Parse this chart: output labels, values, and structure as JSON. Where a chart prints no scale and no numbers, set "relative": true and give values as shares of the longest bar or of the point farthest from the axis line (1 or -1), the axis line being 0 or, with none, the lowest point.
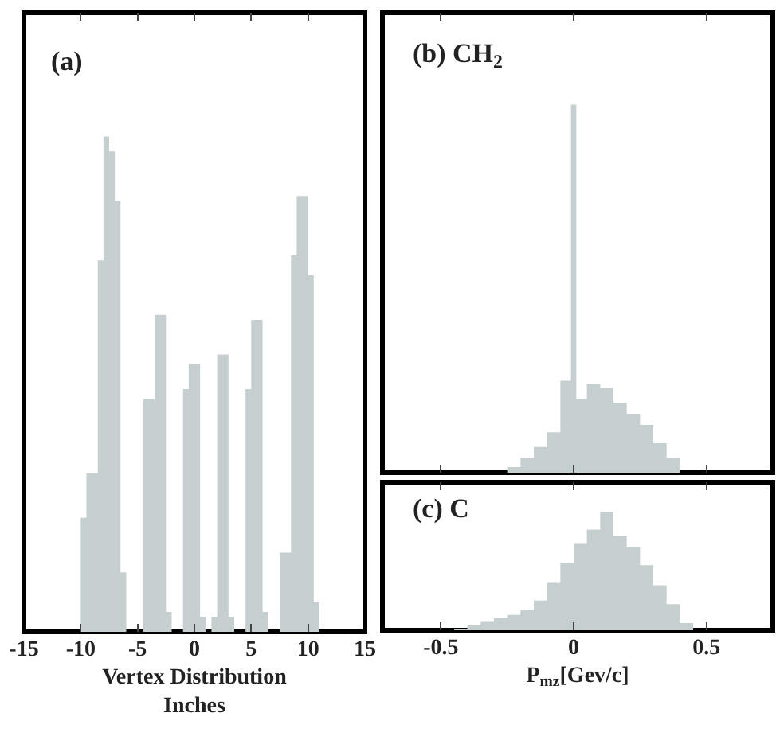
{
  "chart_data": [
    {
      "type": "area",
      "title": "(a)",
      "xlabel": "Vertex Distribution\nInches",
      "relative": true,
      "xlim": [
        -15,
        15
      ],
      "xticks": [
        -15,
        -10,
        -5,
        0,
        5,
        10,
        15
      ],
      "tick_labels": "x",
      "x": [
        -10.5,
        -10,
        -9.5,
        -9,
        -8.5,
        -8,
        -7.5,
        -7,
        -6.5,
        -6,
        -5.5,
        -5,
        -4.5,
        -4,
        -3.5,
        -3,
        -2.5,
        -2,
        -1.5,
        -1,
        -0.5,
        0,
        0.5,
        1,
        1.5,
        2,
        2.5,
        3,
        3.5,
        4,
        4.5,
        5,
        5.5,
        6,
        6.5,
        7,
        7.5,
        8,
        8.5,
        9,
        9.5,
        10,
        10.5,
        11,
        11.5
      ],
      "series": [
        {
          "type": "area",
          "color": "#c5cfd0",
          "values": [
            0,
            0.23,
            0.32,
            0.32,
            0.75,
            1,
            0.97,
            0.87,
            0.12,
            0,
            0,
            0,
            0.47,
            0.47,
            0.64,
            0.64,
            0.04,
            0,
            0,
            0.49,
            0.54,
            0.54,
            0.03,
            0,
            0.03,
            0.56,
            0.56,
            0.03,
            0,
            0,
            0.49,
            0.63,
            0.63,
            0.04,
            0,
            0,
            0.16,
            0.16,
            0.76,
            0.88,
            0.88,
            0.72,
            0.06,
            0,
            0
          ]
        }
      ]
    },
    {
      "type": "area",
      "title": "(b) CH$_{2}$",
      "relative": true,
      "xlim": [
        -0.72,
        0.75
      ],
      "xticks": [
        -0.5,
        0,
        0.5
      ],
      "tick_labels": false,
      "x": [
        -0.3,
        -0.25,
        -0.2,
        -0.15,
        -0.1,
        -0.05,
        -0.01,
        0.01,
        0.05,
        0.1,
        0.15,
        0.2,
        0.25,
        0.3,
        0.35,
        0.4,
        0.45
      ],
      "series": [
        {
          "type": "area",
          "color": "#c5cfd0",
          "values": [
            0,
            0.015,
            0.04,
            0.07,
            0.11,
            0.25,
            1,
            0.2,
            0.24,
            0.23,
            0.19,
            0.16,
            0.13,
            0.08,
            0.04,
            0,
            0
          ]
        }
      ]
    },
    {
      "type": "area",
      "title": "(c) C",
      "xlabel": "P$_{mz}$[Gev/c]",
      "relative": true,
      "xlim": [
        -0.72,
        0.75
      ],
      "xticks": [
        -0.5,
        0,
        0.5
      ],
      "tick_labels": "x",
      "x": [
        -0.45,
        -0.4,
        -0.35,
        -0.3,
        -0.25,
        -0.2,
        -0.15,
        -0.1,
        -0.05,
        0,
        0.05,
        0.1,
        0.15,
        0.2,
        0.25,
        0.3,
        0.35,
        0.4,
        0.45
      ],
      "series": [
        {
          "type": "area",
          "color": "#c5cfd0",
          "values": [
            0.01,
            0.04,
            0.07,
            0.1,
            0.13,
            0.17,
            0.25,
            0.4,
            0.57,
            0.73,
            0.85,
            1,
            0.8,
            0.7,
            0.55,
            0.38,
            0.22,
            0.06,
            0
          ]
        }
      ]
    }
  ]
}
